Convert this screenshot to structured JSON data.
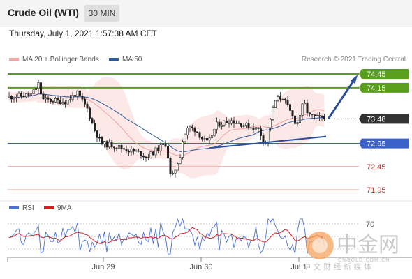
{
  "header": {
    "title": "Crude Oil (WTI)",
    "timeframe": "30 MIN"
  },
  "datetime": "Thursday, July 1, 2021 1:57:38 AM CET",
  "legend": {
    "ma20": {
      "label": "MA 20 + Bollinger Bands",
      "color": "#f08a8a"
    },
    "ma50": {
      "label": "MA 50",
      "color": "#2c5aa0"
    },
    "credit": "Research © 2021 Trading Central"
  },
  "rsi_legend": {
    "rsi": {
      "label": "RSI",
      "color": "#4a73d0"
    },
    "ma9": {
      "label": "9MA",
      "color": "#d42020"
    }
  },
  "watermark": {
    "brand": "中金网",
    "domain": "CNGOLD.COM.CN",
    "tagline": "中 文 财 经 新 媒 体"
  },
  "chart_data": {
    "type": "candlestick",
    "x_ticks": [
      "Jun 29",
      "Jun 30",
      "Jul 1"
    ],
    "price_range": [
      71.78,
      74.6
    ],
    "current_price": 73.48,
    "levels": [
      {
        "value": 74.45,
        "label": "74.45",
        "kind": "resistance",
        "color": "#5a9e1e"
      },
      {
        "value": 74.15,
        "label": "74.15",
        "kind": "resistance",
        "color": "#5a9e1e"
      },
      {
        "value": 73.48,
        "label": "73.48",
        "kind": "current",
        "color": "#333333"
      },
      {
        "value": 72.95,
        "label": "72.95",
        "kind": "pivot",
        "color": "#3a62c8"
      },
      {
        "value": 72.45,
        "label": "72.45",
        "kind": "support",
        "color": "#f3a1a1"
      },
      {
        "value": 71.95,
        "label": "71.95",
        "kind": "support",
        "color": "#f3a1a1"
      }
    ],
    "trendline_prices": [
      72.85,
      73.1
    ],
    "forecast_target": 74.45,
    "rsi": {
      "level": 70,
      "level_label": "70"
    }
  }
}
